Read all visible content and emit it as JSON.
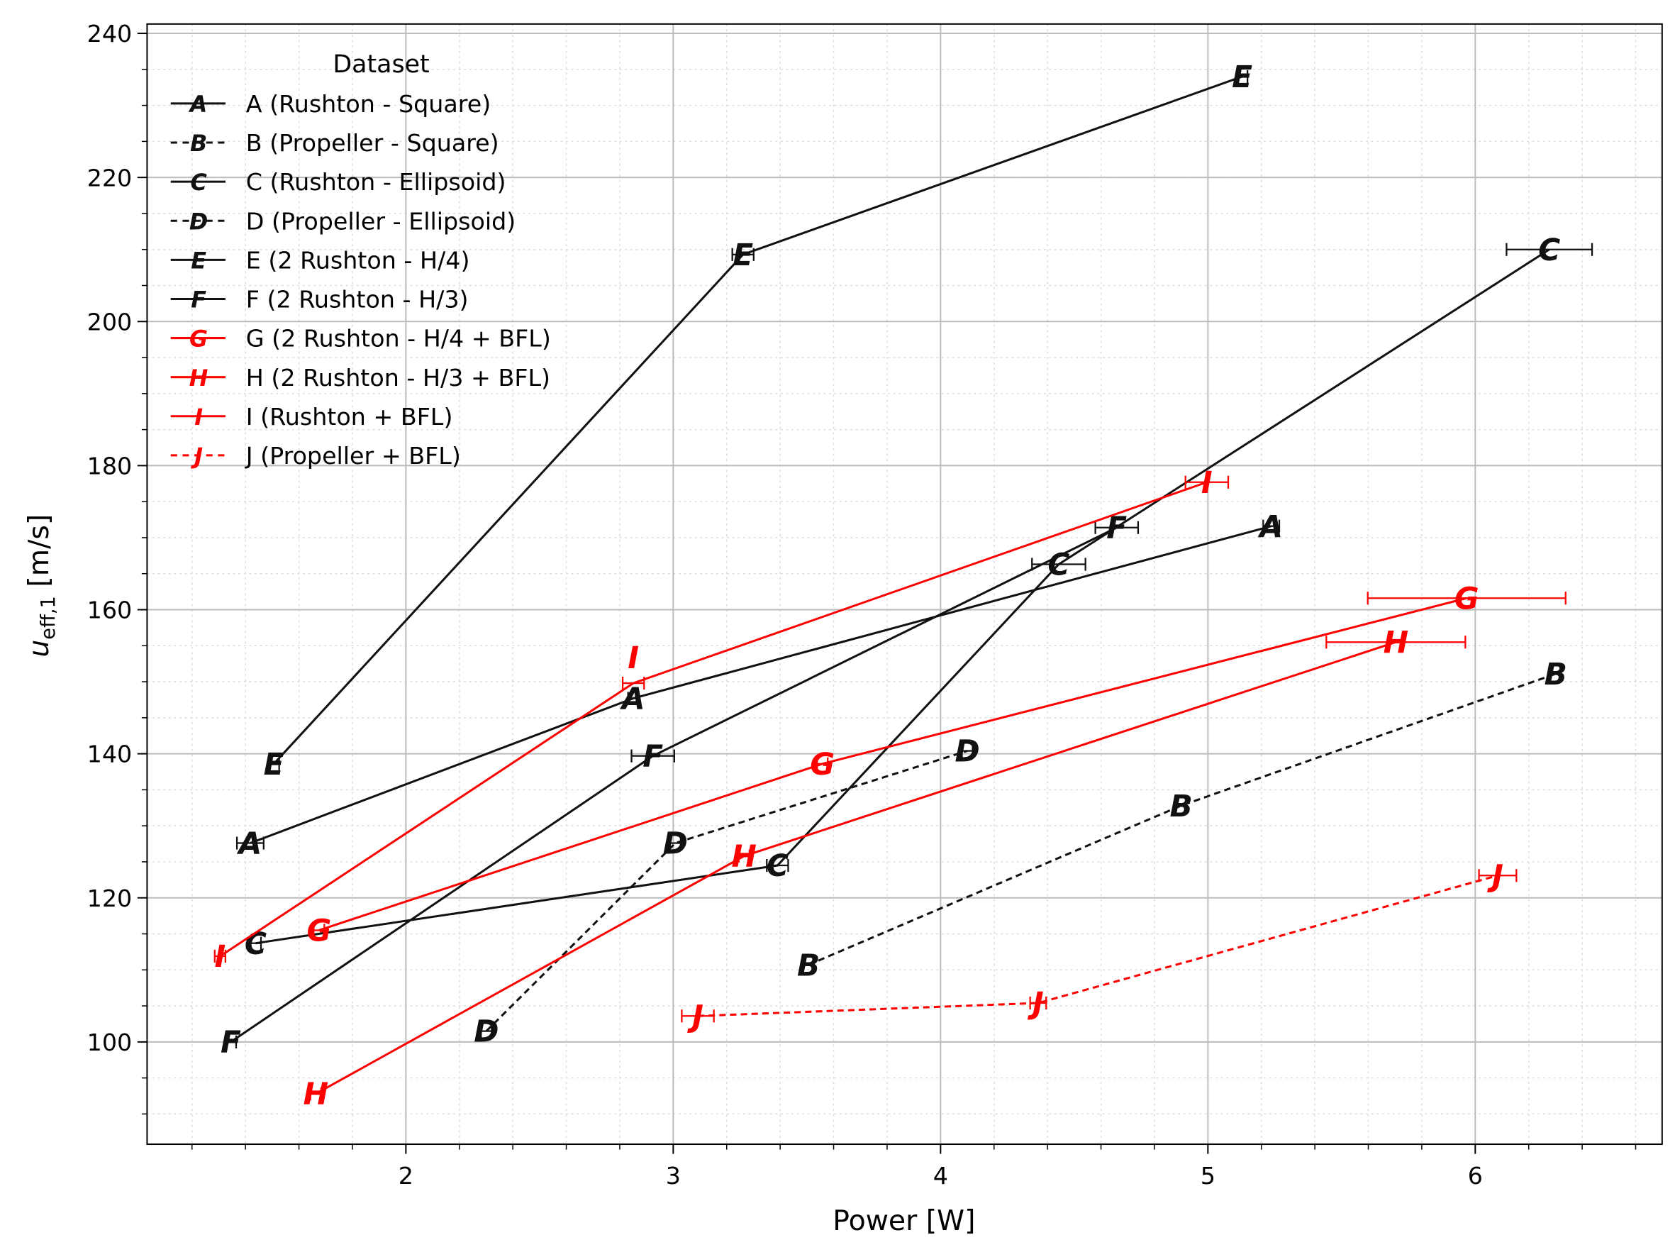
{
  "chart_data": {
    "type": "line",
    "title": "",
    "xlabel": "Power [W]",
    "ylabel_main": "u",
    "ylabel_sub": "eff,1",
    "ylabel_unit": " [m/s]",
    "xlim": [
      1.032,
      6.699
    ],
    "ylim": [
      85.8,
      241.3
    ],
    "xticks": [
      2,
      3,
      4,
      5,
      6
    ],
    "yticks": [
      100,
      120,
      140,
      160,
      180,
      200,
      220,
      240
    ],
    "grid": true,
    "minor_grid": true,
    "legend": {
      "title": "Dataset",
      "placement": "top-left"
    },
    "series": [
      {
        "name": "A (Rushton - Square)",
        "marker": "A",
        "color": "#111111",
        "dash": false,
        "x": [
          1.418,
          2.851,
          5.237
        ],
        "y": [
          127.6,
          147.7,
          171.6
        ],
        "xerr": [
          0.05,
          0.02,
          0.03
        ]
      },
      {
        "name": "B (Propeller - Square)",
        "marker": "B",
        "color": "#111111",
        "dash": true,
        "x": [
          3.506,
          4.9,
          6.301
        ],
        "y": [
          110.7,
          132.8,
          151.1
        ],
        "xerr": [
          0.02,
          0.02,
          0.02
        ]
      },
      {
        "name": "C (Rushton - Ellipsoid)",
        "marker": "C",
        "color": "#111111",
        "dash": false,
        "x": [
          1.438,
          3.39,
          4.442,
          6.277
        ],
        "y": [
          113.7,
          124.5,
          166.3,
          210.0
        ],
        "xerr": [
          0.02,
          0.04,
          0.1,
          0.16
        ]
      },
      {
        "name": "D (Propeller - Ellipsoid)",
        "marker": "D",
        "color": "#111111",
        "dash": true,
        "x": [
          2.301,
          3.008,
          4.1
        ],
        "y": [
          101.5,
          127.6,
          140.4
        ],
        "xerr": [
          0.02,
          0.02,
          0.02
        ]
      },
      {
        "name": "E (2 Rushton - H/4)",
        "marker": "E",
        "color": "#111111",
        "dash": false,
        "x": [
          1.506,
          3.261,
          5.128
        ],
        "y": [
          138.6,
          209.3,
          234.0
        ],
        "xerr": [
          0.02,
          0.04,
          0.02
        ]
      },
      {
        "name": "F (2 Rushton - H/3)",
        "marker": "F",
        "color": "#111111",
        "dash": false,
        "x": [
          1.345,
          2.924,
          4.659
        ],
        "y": [
          100.0,
          139.7,
          171.4
        ],
        "xerr": [
          0.02,
          0.08,
          0.08
        ]
      },
      {
        "name": "G (2 Rushton - H/4 + BFL)",
        "marker": "G",
        "color": "#ff0000",
        "dash": false,
        "x": [
          1.675,
          3.558,
          5.968
        ],
        "y": [
          115.5,
          138.6,
          161.6
        ],
        "xerr": [
          0.02,
          0.02,
          0.37
        ]
      },
      {
        "name": "H (2 Rushton - H/3 + BFL)",
        "marker": "H",
        "color": "#ff0000",
        "dash": false,
        "x": [
          1.663,
          3.265,
          5.703
        ],
        "y": [
          92.8,
          125.8,
          155.5
        ],
        "xerr": [
          0.02,
          0.02,
          0.26
        ]
      },
      {
        "name": "I (Rushton + BFL)",
        "marker": "I",
        "color": "#ff0000",
        "dash": false,
        "x": [
          1.305,
          2.851,
          4.996
        ],
        "y": [
          111.9,
          149.8,
          177.7
        ],
        "xerr": [
          0.02,
          0.04,
          0.08
        ]
      },
      {
        "name": "J (Propeller + BFL)",
        "marker": "J",
        "color": "#ff0000",
        "dash": true,
        "x": [
          3.092,
          4.365,
          6.084
        ],
        "y": [
          103.6,
          105.4,
          123.1
        ],
        "xerr": [
          0.06,
          0.03,
          0.07
        ]
      }
    ]
  }
}
